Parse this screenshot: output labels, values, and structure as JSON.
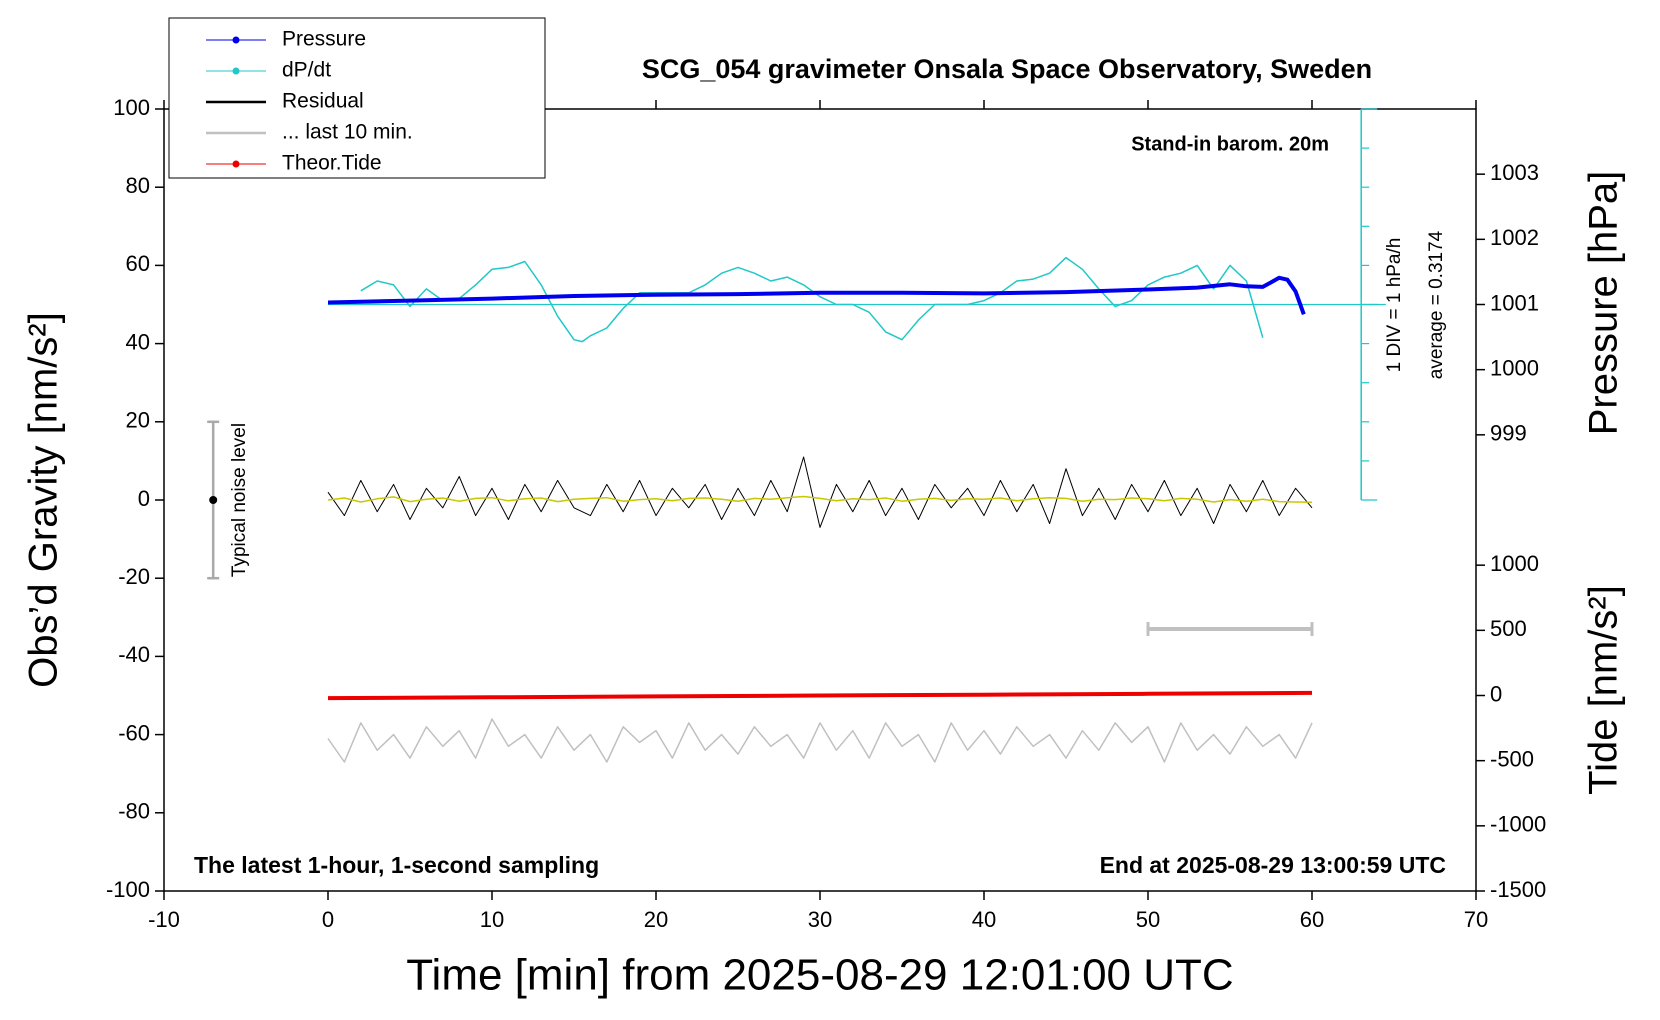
{
  "chart_data": {
    "type": "line",
    "title": "SCG_054 gravimeter Onsala Space Observatory, Sweden",
    "xlabel": "Time [min] from 2025-08-29 12:01:00 UTC",
    "ylabel": "Obs’d Gravity [nm/s²]",
    "y2label": "Pressure [hPa]",
    "y3label": "Tide [nm/s²]",
    "xlim": [
      -10,
      70
    ],
    "xticks": [
      -10,
      0,
      10,
      20,
      30,
      40,
      50,
      60,
      70
    ],
    "ylim": [
      -100,
      100
    ],
    "yticks": [
      -100,
      -80,
      -60,
      -40,
      -20,
      0,
      20,
      40,
      60,
      80,
      100
    ],
    "y2lim": [
      998,
      1004
    ],
    "y2ticks": [
      999,
      1000,
      1001,
      1002,
      1003
    ],
    "y3lim": [
      -1500,
      1500
    ],
    "y3ticks": [
      -1500,
      -1000,
      -500,
      0,
      500,
      1000
    ],
    "annotations": [
      "Stand-in barom. 20m",
      "1 DIV = 1 hPa/h",
      "average = 0.3174",
      "The latest 1-hour, 1-second sampling",
      "End at 2025-08-29 13:00:59 UTC"
    ],
    "noise": {
      "label": "Typical noise level",
      "x": -7,
      "value": 0,
      "error": 20
    },
    "last10_bar": {
      "x": [
        50,
        60
      ],
      "y": -33,
      "color": "#c0c0c0"
    },
    "legend": "upper left",
    "series": [
      {
        "name": "Pressure",
        "color": "#0000ee",
        "linewidth": 4,
        "marker": true,
        "axis": "y2",
        "x": [
          0,
          5,
          10,
          15,
          20,
          25,
          30,
          35,
          40,
          45,
          50,
          53,
          55,
          56,
          57,
          58,
          58.5,
          59,
          59.5
        ],
        "values": [
          1001.03,
          1001.06,
          1001.09,
          1001.13,
          1001.15,
          1001.16,
          1001.18,
          1001.18,
          1001.17,
          1001.19,
          1001.23,
          1001.26,
          1001.31,
          1001.28,
          1001.27,
          1001.41,
          1001.38,
          1001.2,
          1000.85
        ]
      },
      {
        "name": "dP/dt",
        "color": "#20c8c8",
        "linewidth": 1.5,
        "marker": true,
        "axis": "y",
        "x": [
          2,
          3,
          4,
          5,
          6,
          7,
          8,
          9,
          10,
          11,
          12,
          13,
          14,
          15,
          15.5,
          16,
          17,
          18,
          19,
          20,
          21,
          22,
          23,
          24,
          25,
          26,
          27,
          28,
          29,
          30,
          31,
          32,
          33,
          34,
          35,
          36,
          37,
          38,
          39,
          40,
          41,
          42,
          43,
          44,
          45,
          46,
          47,
          48,
          49,
          50,
          51,
          52,
          53,
          54,
          55,
          56,
          57
        ],
        "values": [
          53.5,
          56,
          55,
          49.5,
          54,
          51,
          51.5,
          55,
          59,
          59.5,
          61,
          55,
          47,
          41,
          40.5,
          42,
          44,
          49,
          53,
          53,
          53,
          53,
          55,
          58,
          59.5,
          58,
          56,
          57,
          55,
          52,
          50,
          50,
          48,
          43,
          41,
          46,
          50,
          50,
          50,
          51,
          53,
          56,
          56.5,
          58,
          62,
          59,
          54,
          49.5,
          51,
          55,
          57,
          58,
          60,
          54,
          60,
          56,
          41.5
        ]
      },
      {
        "name": "Residual",
        "color": "#000000",
        "linewidth": 1,
        "marker": false,
        "axis": "y",
        "x": [
          0,
          1,
          2,
          3,
          4,
          5,
          6,
          7,
          8,
          9,
          10,
          11,
          12,
          13,
          14,
          15,
          16,
          17,
          18,
          19,
          20,
          21,
          22,
          23,
          24,
          25,
          26,
          27,
          28,
          29,
          30,
          31,
          32,
          33,
          34,
          35,
          36,
          37,
          38,
          39,
          40,
          41,
          42,
          43,
          44,
          45,
          46,
          47,
          48,
          49,
          50,
          51,
          52,
          53,
          54,
          55,
          56,
          57,
          58,
          59,
          60
        ],
        "values": [
          2,
          -4,
          5,
          -3,
          4,
          -5,
          3,
          -2,
          6,
          -4,
          3,
          -5,
          4,
          -3,
          5,
          -2,
          -4,
          4,
          -3,
          5,
          -4,
          3,
          -2,
          4,
          -5,
          3,
          -4,
          5,
          -3,
          11,
          -7,
          4,
          -3,
          5,
          -4,
          3,
          -5,
          4,
          -2,
          3,
          -4,
          5,
          -3,
          4,
          -6,
          8,
          -4,
          3,
          -5,
          4,
          -3,
          5,
          -4,
          3,
          -6,
          4,
          -3,
          5,
          -4,
          3,
          -2
        ]
      },
      {
        "color": "#c8c800",
        "linewidth": 1.5,
        "marker": false,
        "axis": "y",
        "x": [
          0,
          1,
          2,
          3,
          4,
          5,
          6,
          7,
          8,
          9,
          10,
          11,
          12,
          13,
          14,
          15,
          16,
          17,
          18,
          19,
          20,
          21,
          22,
          23,
          24,
          25,
          26,
          27,
          28,
          29,
          30,
          31,
          32,
          33,
          34,
          35,
          36,
          37,
          38,
          39,
          40,
          41,
          42,
          43,
          44,
          45,
          46,
          47,
          48,
          49,
          50,
          51,
          52,
          53,
          54,
          55,
          56,
          57,
          58,
          59,
          60
        ],
        "values": [
          0,
          0.5,
          -0.5,
          0.3,
          0.8,
          -0.4,
          0.2,
          0.5,
          -0.3,
          0.4,
          0.6,
          -0.2,
          0.3,
          0.5,
          -0.4,
          0.2,
          0.4,
          0.6,
          -0.3,
          0.1,
          0.3,
          -0.2,
          0.4,
          0.5,
          0.2,
          -0.3,
          0.4,
          0.2,
          0.6,
          0.9,
          0.4,
          -0.2,
          0.3,
          0.1,
          0.5,
          -0.3,
          0.2,
          0.4,
          -0.1,
          0.3,
          0.2,
          0.5,
          -0.2,
          0.3,
          0.6,
          0.4,
          -0.3,
          0.2,
          0.1,
          0.5,
          0.3,
          -0.2,
          0.4,
          0.2,
          -0.5,
          0.1,
          -0.3,
          0.2,
          -0.4,
          -0.5,
          -0.6
        ]
      },
      {
        "name": "... last 10 min.",
        "color": "#c0c0c0",
        "linewidth": 1.5,
        "marker": false,
        "axis": "y",
        "x": [
          0,
          1,
          2,
          3,
          4,
          5,
          6,
          7,
          8,
          9,
          10,
          11,
          12,
          13,
          14,
          15,
          16,
          17,
          18,
          19,
          20,
          21,
          22,
          23,
          24,
          25,
          26,
          27,
          28,
          29,
          30,
          31,
          32,
          33,
          34,
          35,
          36,
          37,
          38,
          39,
          40,
          41,
          42,
          43,
          44,
          45,
          46,
          47,
          48,
          49,
          50,
          51,
          52,
          53,
          54,
          55,
          56,
          57,
          58,
          59,
          60
        ],
        "values": [
          -61,
          -67,
          -57,
          -64,
          -60,
          -66,
          -58,
          -63,
          -59,
          -66,
          -56,
          -63,
          -60,
          -66,
          -58,
          -64,
          -60,
          -67,
          -58,
          -62,
          -59,
          -66,
          -57,
          -64,
          -60,
          -65,
          -58,
          -63,
          -60,
          -66,
          -57,
          -64,
          -59,
          -66,
          -57,
          -63,
          -60,
          -67,
          -57,
          -64,
          -59,
          -65,
          -58,
          -63,
          -60,
          -66,
          -59,
          -64,
          -57,
          -62,
          -58,
          -67,
          -57,
          -64,
          -60,
          -65,
          -58,
          -63,
          -60,
          -66,
          -57
        ]
      },
      {
        "name": "Theor.Tide",
        "color": "#ee0000",
        "linewidth": 4,
        "marker": true,
        "axis": "y3",
        "x": [
          0,
          10,
          20,
          30,
          40,
          50,
          60
        ],
        "values": [
          -20,
          -14,
          -7,
          0,
          6,
          13,
          20
        ]
      }
    ]
  }
}
